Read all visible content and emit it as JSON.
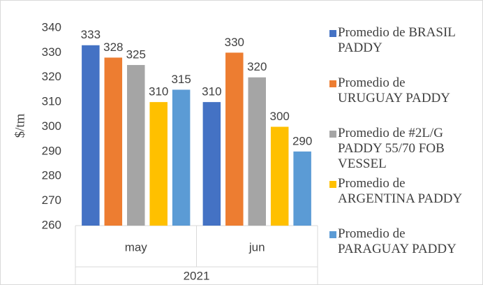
{
  "chart_data": {
    "type": "bar",
    "y_label": "$/tm",
    "categories": [
      "may",
      "jun"
    ],
    "category_group": "2021",
    "series": [
      {
        "name": "Promedio de BRASIL PADDY",
        "color": "#4472c4",
        "values": [
          333,
          310
        ]
      },
      {
        "name": "Promedio de URUGUAY PADDY",
        "color": "#ed7d31",
        "values": [
          328,
          330
        ]
      },
      {
        "name": "Promedio de #2L/G PADDY 55/70 FOB VESSEL",
        "color": "#a5a5a5",
        "values": [
          325,
          320
        ]
      },
      {
        "name": "Promedio de ARGENTINA PADDY",
        "color": "#ffc000",
        "values": [
          310,
          300
        ]
      },
      {
        "name": "Promedio de PARAGUAY PADDY",
        "color": "#5b9bd5",
        "values": [
          315,
          290
        ]
      }
    ],
    "ylim": [
      260,
      340
    ],
    "yticks": [
      260,
      270,
      280,
      290,
      300,
      310,
      320,
      330,
      340
    ],
    "legend": "right"
  }
}
